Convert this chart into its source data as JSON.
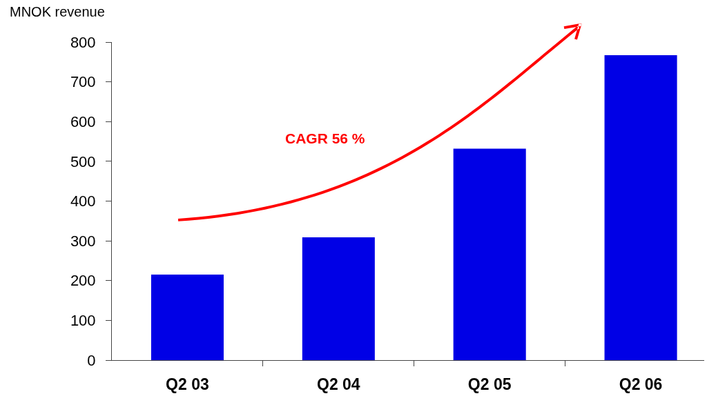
{
  "chart_data": {
    "type": "bar",
    "ylabel": "MNOK revenue",
    "categories": [
      "Q2 03",
      "Q2 04",
      "Q2 05",
      "Q2 06"
    ],
    "values": [
      215,
      309,
      532,
      767
    ],
    "color": "#0000e6",
    "ylim": [
      0,
      800
    ],
    "yticks": [
      0,
      100,
      200,
      300,
      400,
      500,
      600,
      700,
      800
    ],
    "annotations": [
      "CAGR 56 %"
    ],
    "grid": false
  }
}
